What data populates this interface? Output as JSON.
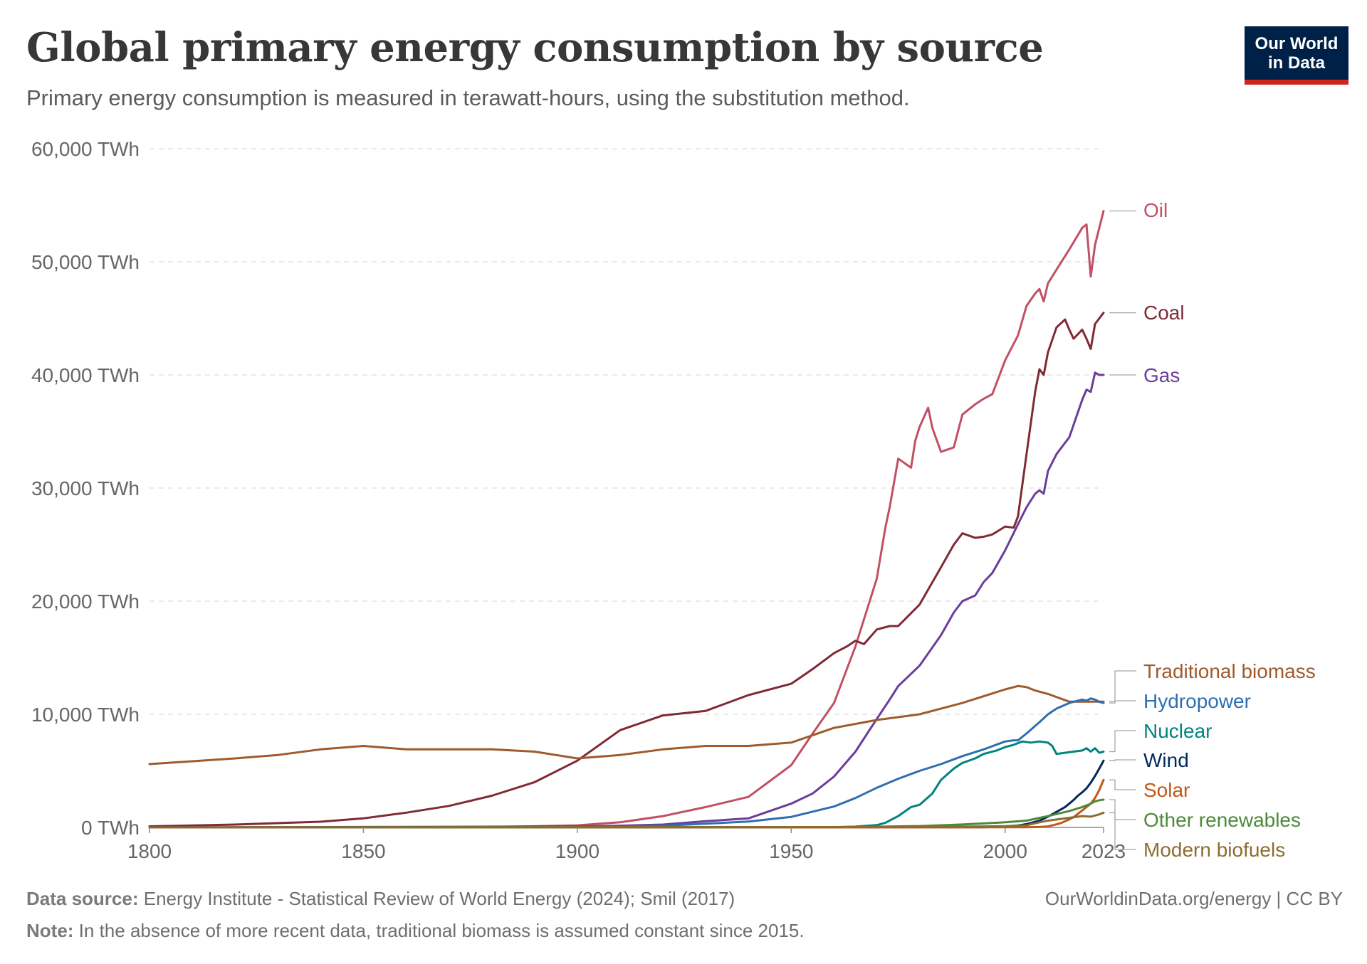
{
  "header": {
    "title": "Global primary energy consumption by source",
    "subtitle": "Primary energy consumption is measured in terawatt-hours, using the substitution method.",
    "logo_line1": "Our World",
    "logo_line2": "in Data"
  },
  "footer": {
    "source_label": "Data source:",
    "source_text": "Energy Institute - Statistical Review of World Energy (2024); Smil (2017)",
    "note_label": "Note:",
    "note_text": "In the absence of more recent data, traditional biomass is assumed constant since 2015.",
    "url_text": "OurWorldinData.org/energy | CC BY"
  },
  "chart_data": {
    "type": "line",
    "title": "Global primary energy consumption by source",
    "subtitle": "Primary energy consumption is measured in terawatt-hours, using the substitution method.",
    "xlabel": "",
    "ylabel": "",
    "xlim": [
      1800,
      2023
    ],
    "ylim": [
      0,
      60000
    ],
    "grid": true,
    "legend": "right-side inline labels",
    "y_ticks": [
      0,
      10000,
      20000,
      30000,
      40000,
      50000,
      60000
    ],
    "y_tick_labels": [
      "0 TWh",
      "10,000 TWh",
      "20,000 TWh",
      "30,000 TWh",
      "40,000 TWh",
      "50,000 TWh",
      "60,000 TWh"
    ],
    "x_ticks": [
      1800,
      1850,
      1900,
      1950,
      2000,
      2023
    ],
    "x_tick_labels": [
      "1800",
      "1850",
      "1900",
      "1950",
      "2000",
      "2023"
    ],
    "series": [
      {
        "name": "Oil",
        "color": "#c15065",
        "x": [
          1800,
          1870,
          1880,
          1890,
          1900,
          1910,
          1920,
          1930,
          1940,
          1950,
          1955,
          1960,
          1965,
          1970,
          1972,
          1973,
          1975,
          1978,
          1979,
          1980,
          1982,
          1983,
          1985,
          1988,
          1990,
          1993,
          1995,
          1997,
          2000,
          2003,
          2005,
          2007,
          2008,
          2009,
          2010,
          2012,
          2015,
          2018,
          2019,
          2020,
          2021,
          2022,
          2023
        ],
        "y": [
          0,
          30,
          50,
          100,
          180,
          450,
          1000,
          1800,
          2700,
          5500,
          8300,
          11000,
          16000,
          22000,
          26500,
          28300,
          32600,
          31800,
          34200,
          35400,
          37100,
          35300,
          33200,
          33600,
          36500,
          37400,
          37900,
          38300,
          41300,
          43500,
          46100,
          47200,
          47600,
          46500,
          48100,
          49300,
          51100,
          53000,
          53300,
          48700,
          51500,
          53000,
          54500
        ]
      },
      {
        "name": "Coal",
        "color": "#7f2a36",
        "x": [
          1800,
          1820,
          1840,
          1850,
          1860,
          1870,
          1880,
          1890,
          1900,
          1910,
          1920,
          1930,
          1940,
          1950,
          1955,
          1960,
          1963,
          1965,
          1967,
          1970,
          1973,
          1975,
          1980,
          1985,
          1988,
          1990,
          1993,
          1995,
          1997,
          2000,
          2002,
          2003,
          2005,
          2007,
          2008,
          2009,
          2010,
          2012,
          2014,
          2015,
          2016,
          2018,
          2019,
          2020,
          2021,
          2022,
          2023
        ],
        "y": [
          97,
          250,
          500,
          800,
          1300,
          1900,
          2800,
          4000,
          5900,
          8600,
          9900,
          10300,
          11700,
          12700,
          14000,
          15400,
          16000,
          16500,
          16200,
          17500,
          17800,
          17800,
          19700,
          23000,
          25000,
          26000,
          25600,
          25700,
          25900,
          26600,
          26500,
          27500,
          33000,
          38500,
          40500,
          40000,
          42000,
          44200,
          44900,
          44000,
          43200,
          44000,
          43200,
          42300,
          44500,
          45000,
          45500
        ]
      },
      {
        "name": "Gas",
        "color": "#6a3d9a",
        "x": [
          1800,
          1900,
          1910,
          1920,
          1930,
          1940,
          1950,
          1955,
          1960,
          1965,
          1970,
          1973,
          1975,
          1980,
          1985,
          1988,
          1990,
          1993,
          1995,
          1997,
          2000,
          2003,
          2005,
          2007,
          2008,
          2009,
          2010,
          2012,
          2015,
          2018,
          2019,
          2020,
          2021,
          2022,
          2023
        ],
        "y": [
          0,
          80,
          150,
          250,
          550,
          800,
          2100,
          3000,
          4500,
          6700,
          9600,
          11300,
          12500,
          14300,
          17000,
          19000,
          20000,
          20500,
          21700,
          22500,
          24500,
          26800,
          28300,
          29500,
          29800,
          29500,
          31500,
          33000,
          34500,
          37800,
          38700,
          38500,
          40200,
          40000,
          40000
        ]
      },
      {
        "name": "Traditional biomass",
        "color": "#a05a2c",
        "x": [
          1800,
          1820,
          1830,
          1840,
          1850,
          1860,
          1870,
          1880,
          1890,
          1900,
          1910,
          1920,
          1930,
          1940,
          1950,
          1960,
          1970,
          1980,
          1990,
          2000,
          2003,
          2005,
          2007,
          2010,
          2015,
          2020,
          2023
        ],
        "y": [
          5600,
          6100,
          6400,
          6900,
          7200,
          6900,
          6900,
          6900,
          6700,
          6100,
          6400,
          6900,
          7200,
          7200,
          7500,
          8800,
          9500,
          10000,
          11000,
          12200,
          12500,
          12400,
          12100,
          11800,
          11111,
          11111,
          11111
        ]
      },
      {
        "name": "Hydropower",
        "color": "#2e6fb1",
        "x": [
          1800,
          1900,
          1910,
          1920,
          1930,
          1940,
          1950,
          1960,
          1965,
          1970,
          1975,
          1980,
          1985,
          1990,
          1995,
          2000,
          2002,
          2003,
          2005,
          2008,
          2010,
          2012,
          2015,
          2018,
          2019,
          2020,
          2021,
          2022,
          2023
        ],
        "y": [
          0,
          30,
          80,
          150,
          330,
          520,
          930,
          1850,
          2600,
          3500,
          4300,
          5000,
          5600,
          6300,
          6900,
          7600,
          7700,
          7700,
          8300,
          9300,
          10000,
          10500,
          11000,
          11300,
          11200,
          11400,
          11300,
          11100,
          11000
        ]
      },
      {
        "name": "Nuclear",
        "color": "#00847e",
        "x": [
          1800,
          1960,
          1965,
          1970,
          1972,
          1975,
          1978,
          1980,
          1983,
          1985,
          1988,
          1990,
          1993,
          1995,
          1998,
          2000,
          2002,
          2004,
          2006,
          2008,
          2010,
          2011,
          2012,
          2014,
          2016,
          2018,
          2019,
          2020,
          2021,
          2022,
          2023
        ],
        "y": [
          0,
          20,
          70,
          200,
          400,
          1000,
          1800,
          2000,
          3000,
          4200,
          5200,
          5700,
          6100,
          6500,
          6800,
          7100,
          7300,
          7600,
          7500,
          7600,
          7500,
          7200,
          6500,
          6600,
          6700,
          6800,
          7000,
          6700,
          7000,
          6600,
          6700
        ]
      },
      {
        "name": "Wind",
        "color": "#00295b",
        "x": [
          1800,
          1995,
          2000,
          2003,
          2005,
          2008,
          2010,
          2012,
          2014,
          2015,
          2016,
          2017,
          2018,
          2019,
          2020,
          2021,
          2022,
          2023
        ],
        "y": [
          0,
          20,
          80,
          170,
          290,
          600,
          950,
          1370,
          1800,
          2100,
          2430,
          2800,
          3100,
          3450,
          3950,
          4550,
          5200,
          5900
        ]
      },
      {
        "name": "Solar",
        "color": "#c05917",
        "x": [
          1800,
          2005,
          2008,
          2010,
          2012,
          2013,
          2014,
          2015,
          2016,
          2017,
          2018,
          2019,
          2020,
          2021,
          2022,
          2023
        ],
        "y": [
          0,
          10,
          40,
          90,
          270,
          380,
          540,
          710,
          900,
          1200,
          1500,
          1800,
          2100,
          2600,
          3300,
          4200
        ]
      },
      {
        "name": "Other renewables",
        "color": "#4c8a3a",
        "x": [
          1800,
          1960,
          1970,
          1980,
          1990,
          1995,
          2000,
          2005,
          2010,
          2015,
          2018,
          2019,
          2020,
          2021,
          2022,
          2023
        ],
        "y": [
          0,
          30,
          60,
          120,
          260,
          350,
          450,
          600,
          1000,
          1450,
          1800,
          1950,
          2100,
          2300,
          2400,
          2450
        ]
      },
      {
        "name": "Modern biofuels",
        "color": "#8c6d31",
        "x": [
          1800,
          1980,
          1990,
          2000,
          2005,
          2008,
          2010,
          2012,
          2015,
          2018,
          2020,
          2021,
          2022,
          2023
        ],
        "y": [
          0,
          40,
          70,
          110,
          180,
          450,
          600,
          700,
          850,
          1000,
          950,
          1050,
          1150,
          1300
        ]
      }
    ]
  }
}
